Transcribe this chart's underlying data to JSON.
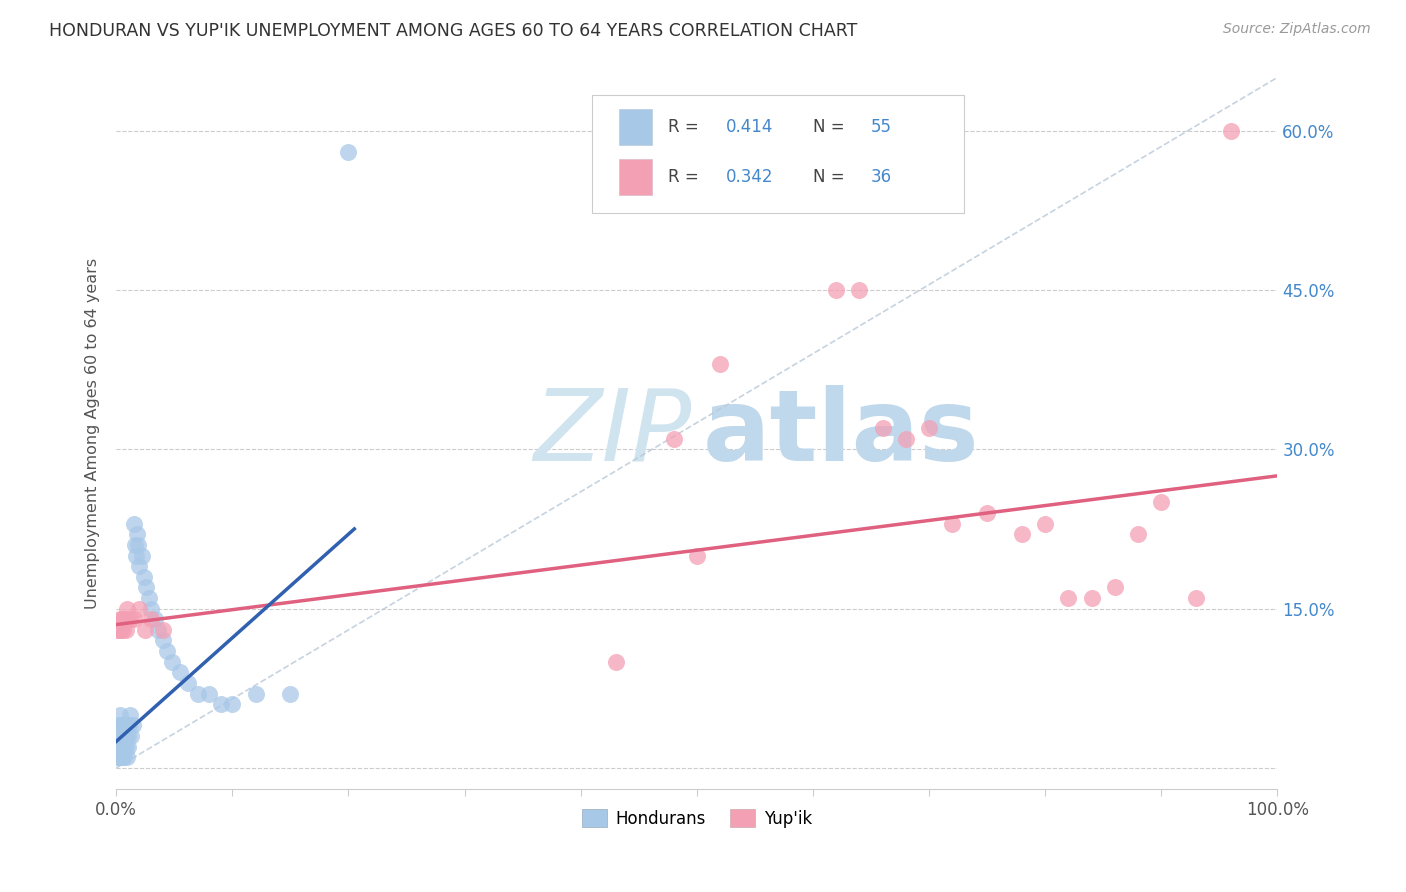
{
  "title": "HONDURAN VS YUP'IK UNEMPLOYMENT AMONG AGES 60 TO 64 YEARS CORRELATION CHART",
  "source": "Source: ZipAtlas.com",
  "ylabel": "Unemployment Among Ages 60 to 64 years",
  "xlim": [
    0,
    1.0
  ],
  "ylim": [
    -0.02,
    0.65
  ],
  "xticks": [
    0.0,
    0.1,
    0.2,
    0.3,
    0.4,
    0.5,
    0.6,
    0.7,
    0.8,
    0.9,
    1.0
  ],
  "yticks": [
    0.0,
    0.15,
    0.3,
    0.45,
    0.6
  ],
  "honduran_R": 0.414,
  "honduran_N": 55,
  "yupik_R": 0.342,
  "yupik_N": 36,
  "honduran_color": "#a8c8e8",
  "yupik_color": "#f4a0b4",
  "trendline_honduran_color": "#3060b0",
  "trendline_yupik_color": "#e06080",
  "diagonal_color": "#b8c8d8",
  "legend_honduran_label": "Hondurans",
  "legend_yupik_label": "Yup'ik",
  "honduran_x": [
    0.001,
    0.001,
    0.002,
    0.002,
    0.002,
    0.003,
    0.003,
    0.003,
    0.003,
    0.004,
    0.004,
    0.004,
    0.005,
    0.005,
    0.005,
    0.006,
    0.006,
    0.007,
    0.007,
    0.007,
    0.008,
    0.008,
    0.009,
    0.009,
    0.01,
    0.01,
    0.011,
    0.012,
    0.013,
    0.014,
    0.015,
    0.016,
    0.017,
    0.018,
    0.019,
    0.02,
    0.022,
    0.024,
    0.026,
    0.028,
    0.03,
    0.033,
    0.036,
    0.04,
    0.044,
    0.048,
    0.055,
    0.062,
    0.07,
    0.08,
    0.09,
    0.1,
    0.12,
    0.15,
    0.2
  ],
  "honduran_y": [
    0.01,
    0.02,
    0.01,
    0.03,
    0.04,
    0.01,
    0.02,
    0.03,
    0.05,
    0.02,
    0.03,
    0.04,
    0.01,
    0.02,
    0.04,
    0.02,
    0.03,
    0.01,
    0.02,
    0.04,
    0.02,
    0.03,
    0.01,
    0.04,
    0.02,
    0.03,
    0.04,
    0.05,
    0.03,
    0.04,
    0.23,
    0.21,
    0.2,
    0.22,
    0.21,
    0.19,
    0.2,
    0.18,
    0.17,
    0.16,
    0.15,
    0.14,
    0.13,
    0.12,
    0.11,
    0.1,
    0.09,
    0.08,
    0.07,
    0.07,
    0.06,
    0.06,
    0.07,
    0.07,
    0.58
  ],
  "yupik_x": [
    0.001,
    0.002,
    0.003,
    0.004,
    0.005,
    0.006,
    0.007,
    0.008,
    0.009,
    0.01,
    0.012,
    0.015,
    0.02,
    0.025,
    0.03,
    0.04,
    0.43,
    0.48,
    0.5,
    0.52,
    0.62,
    0.64,
    0.66,
    0.68,
    0.7,
    0.72,
    0.75,
    0.78,
    0.8,
    0.82,
    0.84,
    0.86,
    0.88,
    0.9,
    0.93,
    0.96
  ],
  "yupik_y": [
    0.13,
    0.13,
    0.14,
    0.13,
    0.14,
    0.13,
    0.14,
    0.13,
    0.15,
    0.14,
    0.14,
    0.14,
    0.15,
    0.13,
    0.14,
    0.13,
    0.1,
    0.31,
    0.2,
    0.38,
    0.45,
    0.45,
    0.32,
    0.31,
    0.32,
    0.23,
    0.24,
    0.22,
    0.23,
    0.16,
    0.16,
    0.17,
    0.22,
    0.25,
    0.16,
    0.6
  ]
}
